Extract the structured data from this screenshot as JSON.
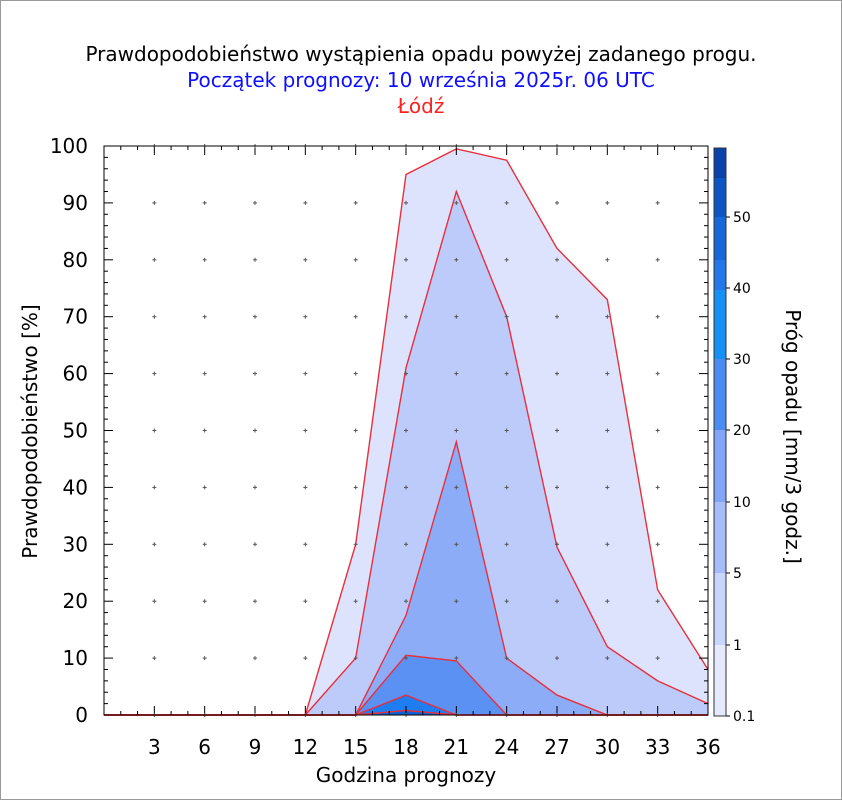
{
  "chart_data": {
    "type": "area",
    "title": "Prawdopodobieństwo wystąpienia opadu powyżej zadanego progu.",
    "subtitle": "Początek prognozy: 10 września 2025r. 06 UTC",
    "location": "Łódź",
    "xlabel": "Godzina prognozy",
    "ylabel": "Prawdopodobieństwo [%]",
    "colorbar_label": "Próg opadu [mm/3 godz.]",
    "xlim": [
      0,
      36
    ],
    "ylim": [
      0,
      100
    ],
    "x_ticks": [
      "3",
      "6",
      "9",
      "12",
      "15",
      "18",
      "21",
      "24",
      "27",
      "30",
      "33",
      "36"
    ],
    "y_ticks": [
      "0",
      "10",
      "20",
      "30",
      "40",
      "50",
      "60",
      "70",
      "80",
      "90",
      "100"
    ],
    "x": [
      0,
      3,
      6,
      9,
      12,
      15,
      18,
      21,
      24,
      27,
      30,
      33,
      36
    ],
    "series": [
      {
        "name": "0.1",
        "color": "#dde3fc",
        "values": [
          0,
          0,
          0,
          0,
          0,
          30,
          95,
          99.5,
          97.5,
          82,
          73,
          22,
          8
        ]
      },
      {
        "name": "1",
        "color": "#bccbfa",
        "values": [
          0,
          0,
          0,
          0,
          0,
          10,
          61,
          92,
          70,
          29.5,
          12,
          6,
          2
        ]
      },
      {
        "name": "5",
        "color": "#8cacf7",
        "values": [
          0,
          0,
          0,
          0,
          0,
          0,
          17.5,
          48,
          10,
          3.5,
          0,
          0,
          0
        ]
      },
      {
        "name": "10",
        "color": "#5b91f3",
        "values": [
          0,
          0,
          0,
          0,
          0,
          0,
          10.5,
          9.5,
          0,
          0,
          0,
          0,
          0
        ]
      },
      {
        "name": "20",
        "color": "#1e7df0",
        "values": [
          0,
          0,
          0,
          0,
          0,
          0,
          3.5,
          0,
          0,
          0,
          0,
          0,
          0
        ]
      },
      {
        "name": "30",
        "color": "#0a64d6",
        "values": [
          0,
          0,
          0,
          0,
          0,
          0,
          0.8,
          0,
          0,
          0,
          0,
          0,
          0
        ]
      }
    ],
    "colorbar": {
      "tick_labels": [
        "0.1",
        "1",
        "5",
        "10",
        "20",
        "30",
        "40",
        "50"
      ],
      "colors": [
        "#e4e9fe",
        "#c8d5fc",
        "#a6bdf9",
        "#82a5f7",
        "#4a8cf2",
        "#1590f5",
        "#2477e8",
        "#1667d8",
        "#0e55c4",
        "#0942a8"
      ]
    }
  }
}
